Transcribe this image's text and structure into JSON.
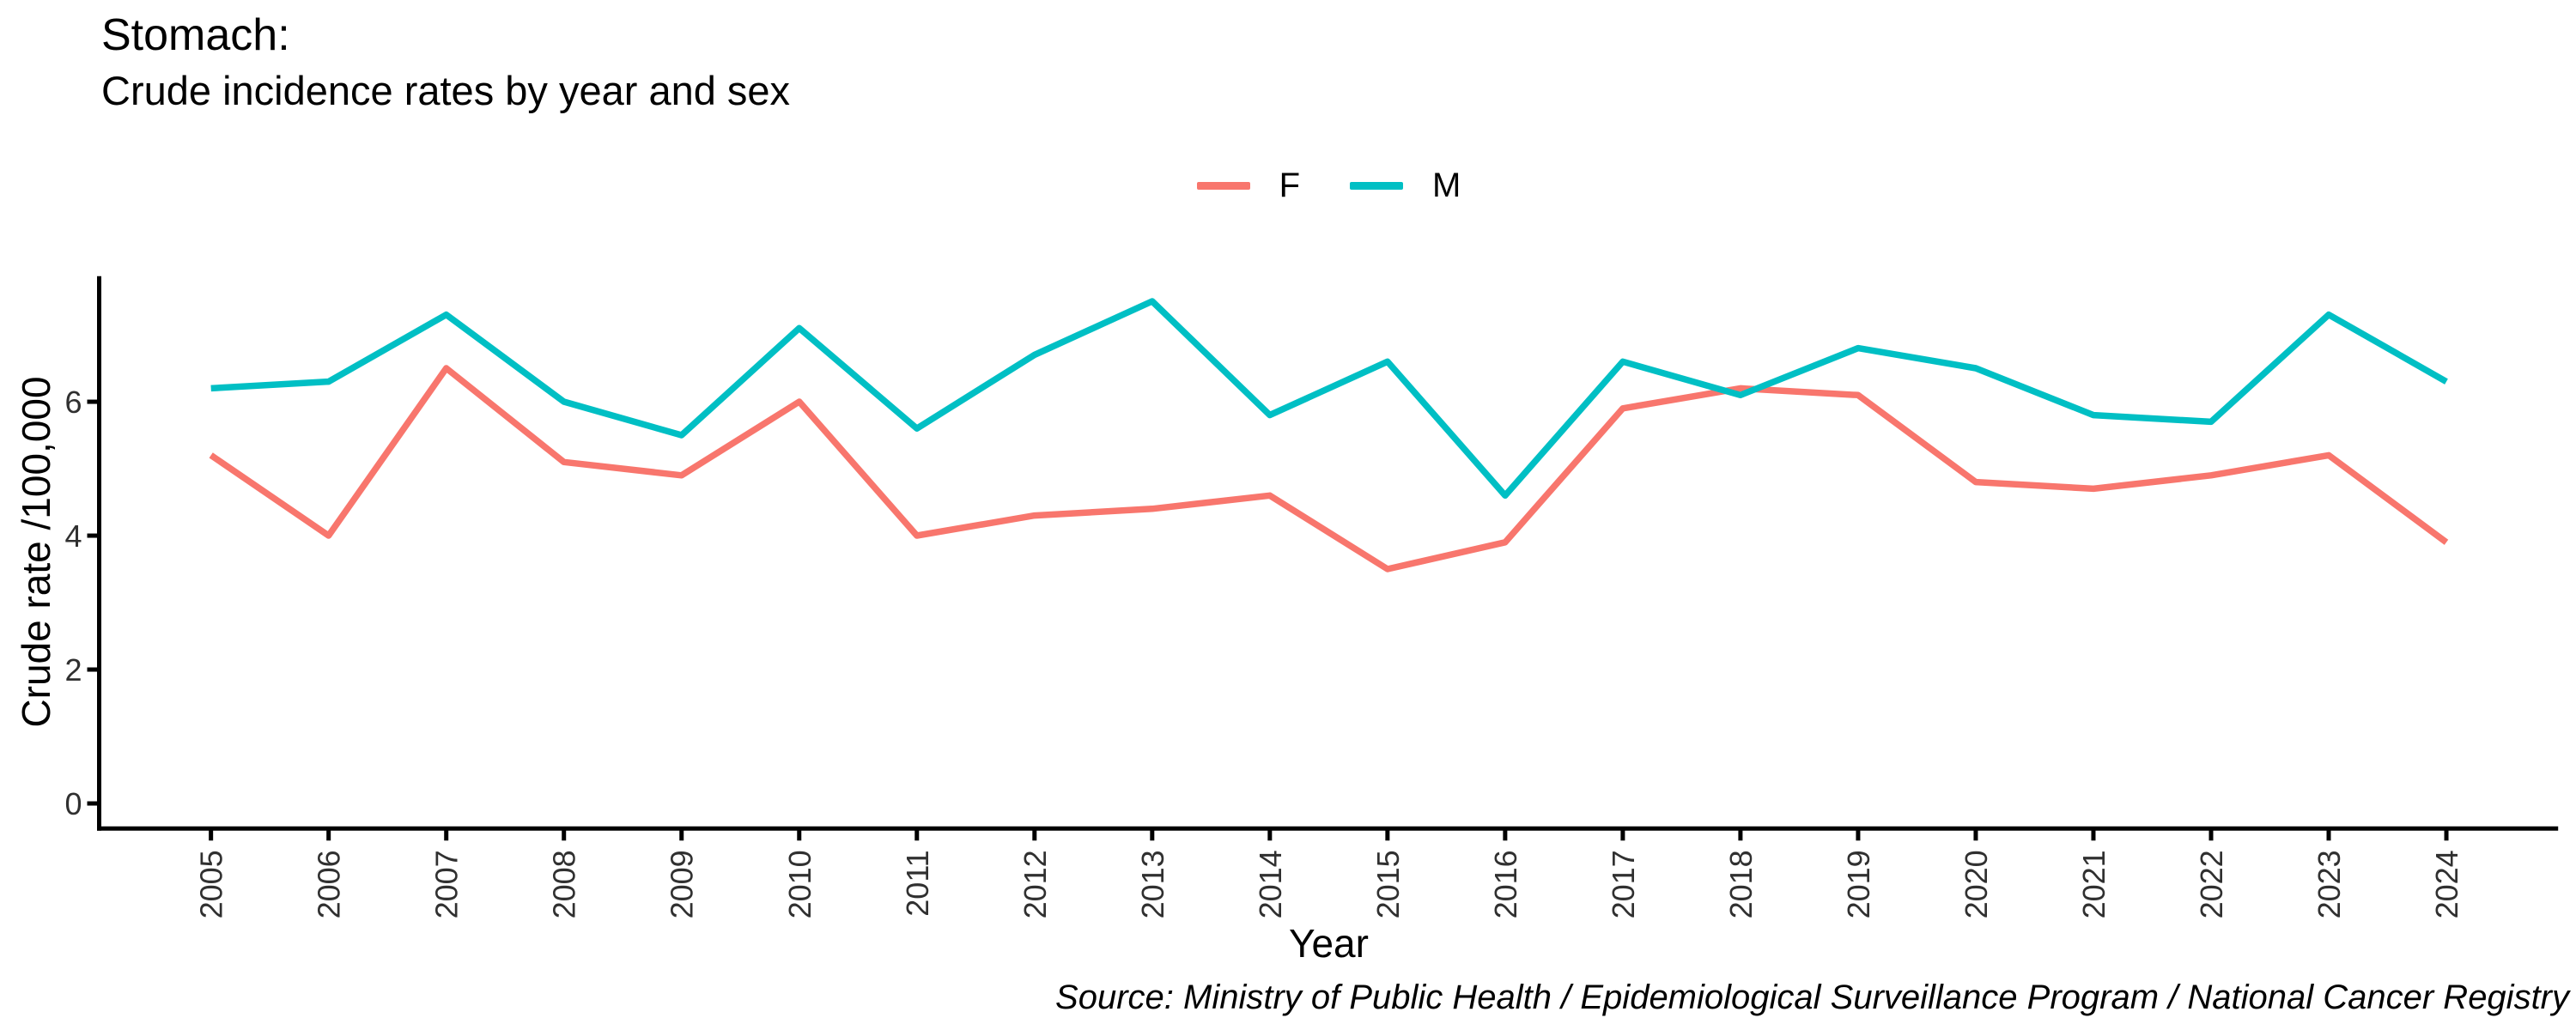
{
  "header": {
    "title": "Stomach:",
    "subtitle": "Crude incidence rates by year and sex"
  },
  "legend": {
    "items": [
      {
        "label": "F",
        "color": "#F8766D"
      },
      {
        "label": "M",
        "color": "#00BFC4"
      }
    ]
  },
  "axes": {
    "x": {
      "label": "Year"
    },
    "y": {
      "label": "Crude rate /100,000"
    }
  },
  "footer": {
    "source": "Source: Ministry of Public Health / Epidemiological Surveillance Program / National Cancer Registry"
  },
  "chart_data": {
    "type": "line",
    "title": "Stomach: Crude incidence rates by year and sex",
    "xlabel": "Year",
    "ylabel": "Crude rate /100,000",
    "x": [
      2005,
      2006,
      2007,
      2008,
      2009,
      2010,
      2011,
      2012,
      2013,
      2014,
      2015,
      2016,
      2017,
      2018,
      2019,
      2020,
      2021,
      2022,
      2023,
      2024
    ],
    "series": [
      {
        "name": "F",
        "color": "#F8766D",
        "values": [
          5.2,
          4.0,
          6.5,
          5.1,
          4.9,
          6.0,
          4.0,
          4.3,
          4.4,
          4.6,
          3.5,
          3.9,
          5.9,
          6.2,
          6.1,
          4.8,
          4.7,
          4.9,
          5.2,
          3.9
        ]
      },
      {
        "name": "M",
        "color": "#00BFC4",
        "values": [
          6.2,
          6.3,
          7.3,
          6.0,
          5.5,
          7.1,
          5.6,
          6.7,
          7.5,
          5.8,
          6.6,
          4.6,
          6.6,
          6.1,
          6.8,
          6.5,
          5.8,
          5.7,
          7.3,
          6.3
        ]
      }
    ],
    "x_ticks": [
      2005,
      2006,
      2007,
      2008,
      2009,
      2010,
      2011,
      2012,
      2013,
      2014,
      2015,
      2016,
      2017,
      2018,
      2019,
      2020,
      2021,
      2022,
      2023,
      2024
    ],
    "y_ticks": [
      0,
      2,
      4,
      6
    ],
    "xlim": [
      2004.05,
      2024.95
    ],
    "ylim": [
      -0.375,
      7.875
    ],
    "grid": false,
    "legend_position": "top",
    "axis_color": "#000000"
  }
}
